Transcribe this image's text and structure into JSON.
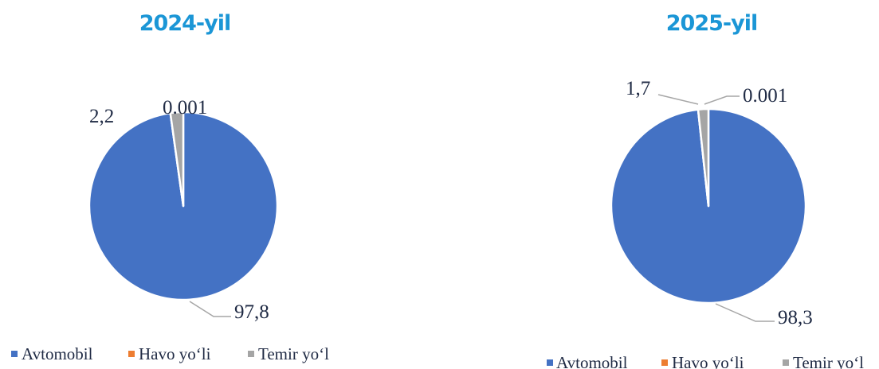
{
  "colors": {
    "Avtomobil": "#4472c4",
    "Havo yo'li": "#ed7d31",
    "Temir yo'l": "#a5a5a5",
    "title": "#1b96d6"
  },
  "chart_data": [
    {
      "type": "pie",
      "title": "2024-yil",
      "categories": [
        "Avtomobil",
        "Havo yo‘li",
        "Temir yo‘l"
      ],
      "values": [
        97.8,
        0.001,
        2.2
      ],
      "data_labels": [
        "97,8",
        "0.001",
        "2,2"
      ],
      "legend": "bottom"
    },
    {
      "type": "pie",
      "title": "2025-yil",
      "categories": [
        "Avtomobil",
        "Havo yo‘li",
        "Temir yo‘l"
      ],
      "values": [
        98.3,
        0.001,
        1.7
      ],
      "data_labels": [
        "98,3",
        "0.001",
        "1,7"
      ],
      "legend": "bottom"
    }
  ]
}
